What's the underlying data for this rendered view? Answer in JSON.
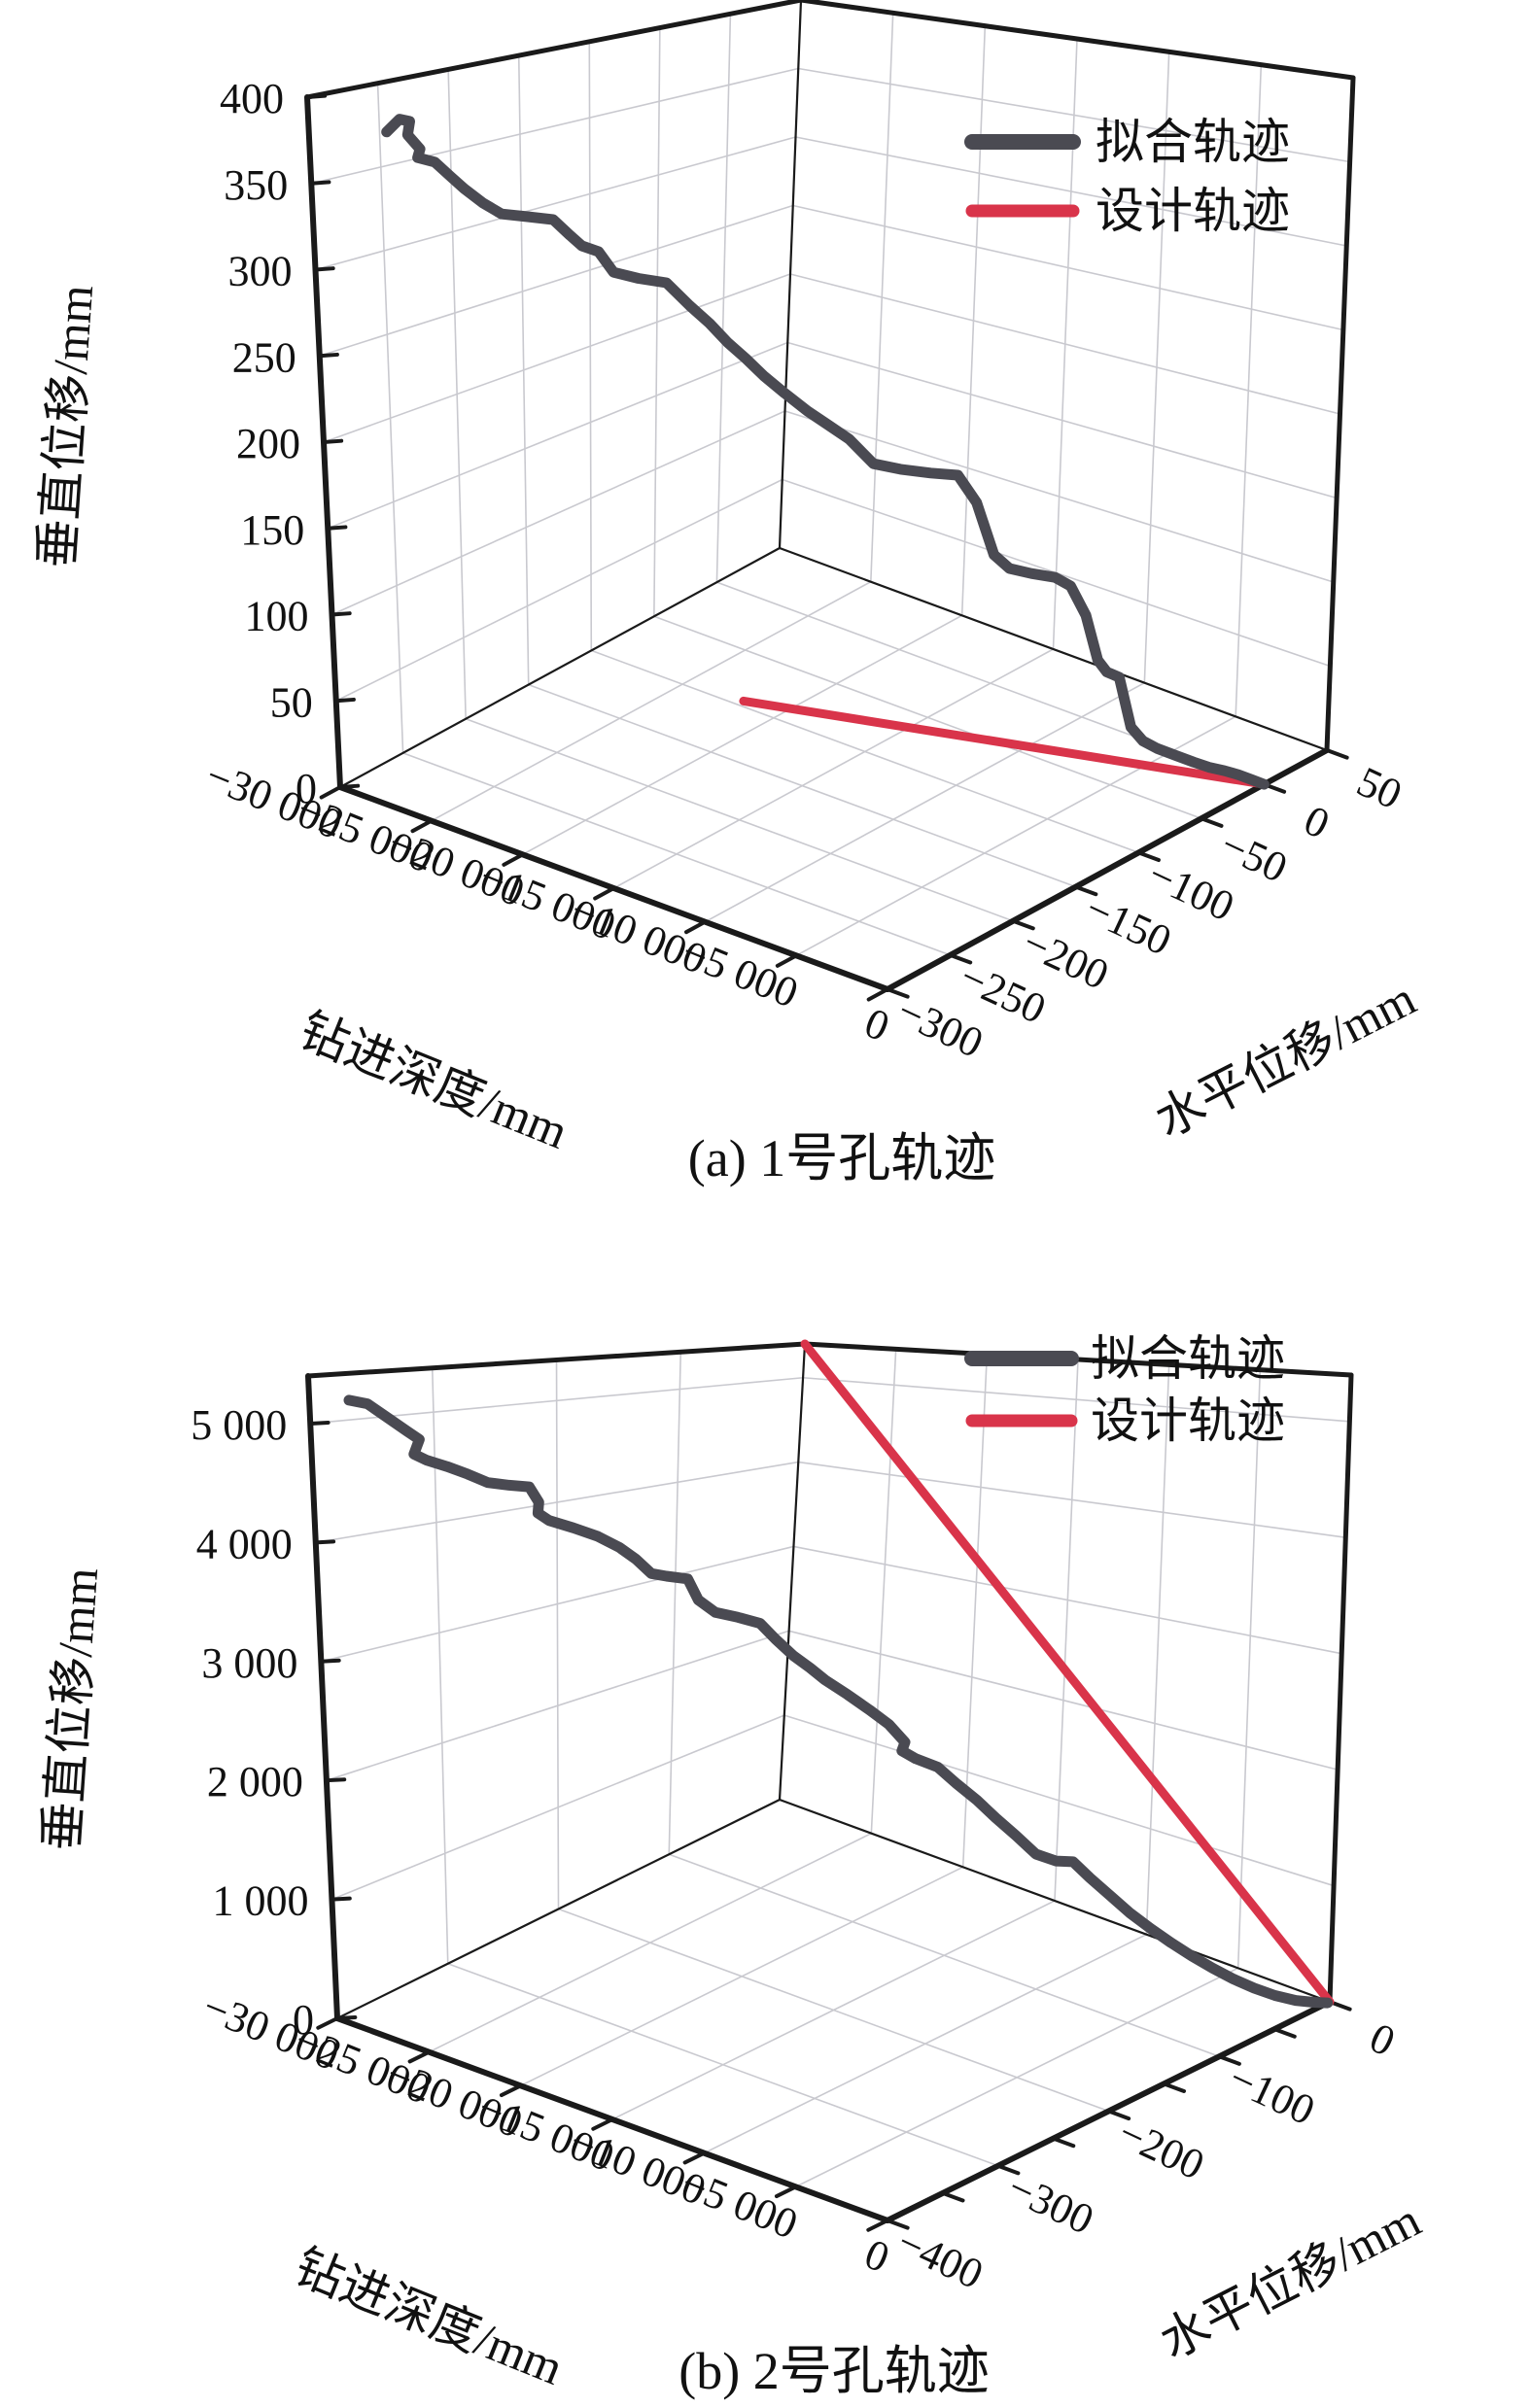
{
  "figure": {
    "captions": [
      "(a) 1号孔轨迹",
      "(b) 2号孔轨迹"
    ]
  },
  "colors": {
    "fitted": "#4a4a52",
    "design": "#d9344a",
    "grid": "#c9c9cf",
    "edge": "#1a1a1a",
    "background": "#ffffff"
  },
  "legend": {
    "fitted_label": "拟合轨迹",
    "design_label": "设计轨迹"
  },
  "chart_data": [
    {
      "type": "line3d",
      "mount": "plot-a",
      "title": "(a) 1号孔轨迹",
      "axes": {
        "x": {
          "label": "钻进深度/mm",
          "min": -30000,
          "max": 0,
          "ticks": [
            {
              "v": -30000,
              "t": "−30 000"
            },
            {
              "v": -25000,
              "t": "−25 000"
            },
            {
              "v": -20000,
              "t": "−20 000"
            },
            {
              "v": -15000,
              "t": "−15 000"
            },
            {
              "v": -10000,
              "t": "−10 000"
            },
            {
              "v": -5000,
              "t": "−5 000"
            },
            {
              "v": 0,
              "t": "0"
            }
          ]
        },
        "y": {
          "label": "水平位移/mm",
          "min": -300,
          "max": 50,
          "ticks": [
            {
              "v": -300,
              "t": "−300"
            },
            {
              "v": -250,
              "t": "−250"
            },
            {
              "v": -200,
              "t": "−200"
            },
            {
              "v": -150,
              "t": "−150"
            },
            {
              "v": -100,
              "t": "−100"
            },
            {
              "v": -50,
              "t": "−50"
            },
            {
              "v": 0,
              "t": "0"
            },
            {
              "v": 50,
              "t": "50"
            }
          ]
        },
        "z": {
          "label": "垂直位移/mm",
          "min": 0,
          "max": 400,
          "cap": 400,
          "ticks": [
            {
              "v": 0,
              "t": "0"
            },
            {
              "v": 50,
              "t": "50"
            },
            {
              "v": 100,
              "t": "100"
            },
            {
              "v": 150,
              "t": "150"
            },
            {
              "v": 200,
              "t": "200"
            },
            {
              "v": 250,
              "t": "250"
            },
            {
              "v": 300,
              "t": "300"
            },
            {
              "v": 350,
              "t": "350"
            },
            {
              "v": 400,
              "t": "400"
            }
          ]
        }
      },
      "grid": true,
      "legend_position": {
        "x": 1000,
        "y1": 146,
        "y2": 217,
        "len": 104,
        "text_x": 1127
      },
      "projection": {
        "floor": {
          "L": [
            350,
            810
          ],
          "V": [
            913,
            1018
          ],
          "R": [
            1365,
            772
          ],
          "T": [
            802,
            564
          ]
        },
        "ceil": {
          "L": [
            316,
            100
          ],
          "V": [
            884,
            180
          ],
          "R": [
            1392,
            80
          ],
          "T": [
            824,
            0
          ]
        }
      },
      "titles_pos": {
        "x": [
          440,
          1128,
          22
        ],
        "y": [
          1330,
          1105,
          -27
        ],
        "z": [
          85,
          440,
          -86
        ]
      },
      "series": [
        {
          "name": "设计轨迹",
          "color_key": "design",
          "width": 9,
          "points": [
            [
              -22000,
              -95,
              0
            ],
            [
              0,
              0,
              0
            ]
          ]
        },
        {
          "name": "拟合轨迹",
          "color_key": "fitted",
          "width": 11,
          "points": [
            [
              -30000,
              -245,
              370
            ],
            [
              -29500,
              -242,
              378
            ],
            [
              -29100,
              -240,
              377
            ],
            [
              -29400,
              -238,
              368
            ],
            [
              -28900,
              -236,
              360
            ],
            [
              -29200,
              -234,
              354
            ],
            [
              -28500,
              -231,
              352
            ],
            [
              -27900,
              -228,
              344
            ],
            [
              -27400,
              -225,
              337
            ],
            [
              -26700,
              -221,
              329
            ],
            [
              -26000,
              -217,
              323
            ],
            [
              -25100,
              -211,
              322
            ],
            [
              -24100,
              -205,
              321
            ],
            [
              -23500,
              -201,
              312
            ],
            [
              -23100,
              -198,
              306
            ],
            [
              -22500,
              -194,
              303
            ],
            [
              -22000,
              -190,
              291
            ],
            [
              -21100,
              -184,
              288
            ],
            [
              -20100,
              -177,
              286
            ],
            [
              -19300,
              -171,
              273
            ],
            [
              -18600,
              -166,
              263
            ],
            [
              -18000,
              -161,
              252
            ],
            [
              -17400,
              -156,
              243
            ],
            [
              -16800,
              -151,
              233
            ],
            [
              -16100,
              -145,
              223
            ],
            [
              -15300,
              -139,
              213
            ],
            [
              -14600,
              -133,
              205
            ],
            [
              -13900,
              -127,
              197
            ],
            [
              -13100,
              -120,
              183
            ],
            [
              -12200,
              -112,
              180
            ],
            [
              -11200,
              -103,
              178
            ],
            [
              -10300,
              -95,
              177
            ],
            [
              -9700,
              -89,
              161
            ],
            [
              -9100,
              -84,
              131
            ],
            [
              -8600,
              -79,
              123
            ],
            [
              -7900,
              -72,
              120
            ],
            [
              -7100,
              -65,
              118
            ],
            [
              -6600,
              -60,
              113
            ],
            [
              -6100,
              -55,
              96
            ],
            [
              -5700,
              -51,
              70
            ],
            [
              -5400,
              -48,
              63
            ],
            [
              -5000,
              -44,
              60
            ],
            [
              -4600,
              -40,
              31
            ],
            [
              -4200,
              -36,
              23
            ],
            [
              -3700,
              -32,
              19
            ],
            [
              -3100,
              -26,
              15
            ],
            [
              -2500,
              -20,
              11
            ],
            [
              -2000,
              -15,
              8
            ],
            [
              -1500,
              -10,
              6
            ],
            [
              -1000,
              -6,
              4
            ],
            [
              -500,
              -3,
              2
            ],
            [
              0,
              0,
              0
            ]
          ]
        }
      ]
    },
    {
      "type": "line3d",
      "mount": "plot-b",
      "title": "(b) 2号孔轨迹",
      "axes": {
        "x": {
          "label": "钻进深度/mm",
          "min": -30000,
          "max": 0,
          "ticks": [
            {
              "v": -30000,
              "t": "−30 000"
            },
            {
              "v": -25000,
              "t": "−25 000"
            },
            {
              "v": -20000,
              "t": "−20 000"
            },
            {
              "v": -15000,
              "t": "−15 000"
            },
            {
              "v": -10000,
              "t": "−10 000"
            },
            {
              "v": -5000,
              "t": "−5 000"
            },
            {
              "v": 0,
              "t": "0"
            }
          ]
        },
        "y": {
          "label": "水平位移/mm",
          "min": -400,
          "max": 0,
          "ticks": [
            {
              "v": -400,
              "t": "−400"
            },
            {
              "v": -350
            },
            {
              "v": -300,
              "t": "−300"
            },
            {
              "v": -250
            },
            {
              "v": -200,
              "t": "−200"
            },
            {
              "v": -150
            },
            {
              "v": -100,
              "t": "−100"
            },
            {
              "v": -50
            },
            {
              "v": 0,
              "t": "0"
            }
          ]
        },
        "z": {
          "label": "垂直位移/mm",
          "min": 0,
          "max": 5000,
          "cap": 5400,
          "ticks": [
            {
              "v": 0,
              "t": "0"
            },
            {
              "v": 1000,
              "t": "1 000"
            },
            {
              "v": 2000,
              "t": "2 000"
            },
            {
              "v": 3000,
              "t": "3 000"
            },
            {
              "v": 4000,
              "t": "4 000"
            },
            {
              "v": 5000,
              "t": "5 000"
            }
          ]
        }
      },
      "grid": true,
      "legend_position": {
        "x": 1000,
        "y1": 1398,
        "y2": 1462,
        "len": 102,
        "text_x": 1122
      },
      "projection": {
        "floor": {
          "L": [
            347,
            2077
          ],
          "V": [
            913,
            2285
          ],
          "R": [
            1368,
            2060
          ],
          "T": [
            802,
            1852
          ]
        },
        "ceil": {
          "L": [
            317,
            1416
          ],
          "V": [
            879,
            1448
          ],
          "R": [
            1390,
            1415
          ],
          "T": [
            828,
            1383
          ]
        }
      },
      "titles_pos": {
        "x": [
          435,
          2400,
          22
        ],
        "y": [
          1335,
          2362,
          -27
        ],
        "z": [
          90,
          1760,
          -86
        ]
      },
      "series": [
        {
          "name": "设计轨迹",
          "color_key": "design",
          "width": 9,
          "points": [
            [
              -30000,
              0,
              5400
            ],
            [
              0,
              0,
              0
            ]
          ]
        },
        {
          "name": "拟合轨迹",
          "color_key": "fitted",
          "width": 11,
          "points": [
            [
              -30000,
              -368,
              5170
            ],
            [
              -29400,
              -362,
              5140
            ],
            [
              -28700,
              -356,
              5020
            ],
            [
              -28100,
              -350,
              4910
            ],
            [
              -27700,
              -346,
              4840
            ],
            [
              -28000,
              -344,
              4770
            ],
            [
              -28300,
              -342,
              4700
            ],
            [
              -27800,
              -339,
              4650
            ],
            [
              -27100,
              -333,
              4600
            ],
            [
              -26400,
              -327,
              4540
            ],
            [
              -25700,
              -321,
              4470
            ],
            [
              -25000,
              -314,
              4450
            ],
            [
              -24300,
              -308,
              4440
            ],
            [
              -24000,
              -305,
              4310
            ],
            [
              -24200,
              -303,
              4210
            ],
            [
              -23800,
              -300,
              4150
            ],
            [
              -23000,
              -292,
              4090
            ],
            [
              -22200,
              -284,
              4020
            ],
            [
              -21500,
              -277,
              3930
            ],
            [
              -21000,
              -271,
              3830
            ],
            [
              -20500,
              -266,
              3710
            ],
            [
              -20000,
              -261,
              3690
            ],
            [
              -19300,
              -254,
              3670
            ],
            [
              -19000,
              -250,
              3490
            ],
            [
              -18400,
              -245,
              3390
            ],
            [
              -17700,
              -237,
              3350
            ],
            [
              -17000,
              -229,
              3300
            ],
            [
              -16500,
              -224,
              3170
            ],
            [
              -15900,
              -218,
              3030
            ],
            [
              -15400,
              -212,
              2930
            ],
            [
              -14900,
              -207,
              2830
            ],
            [
              -14200,
              -199,
              2710
            ],
            [
              -13500,
              -191,
              2580
            ],
            [
              -12900,
              -184,
              2460
            ],
            [
              -12400,
              -178,
              2310
            ],
            [
              -12700,
              -176,
              2220
            ],
            [
              -12200,
              -172,
              2160
            ],
            [
              -11500,
              -164,
              2090
            ],
            [
              -10900,
              -157,
              1950
            ],
            [
              -10300,
              -149,
              1810
            ],
            [
              -9700,
              -142,
              1660
            ],
            [
              -9100,
              -134,
              1510
            ],
            [
              -8500,
              -126,
              1350
            ],
            [
              -7900,
              -118,
              1290
            ],
            [
              -7400,
              -111,
              1280
            ],
            [
              -6900,
              -104,
              1140
            ],
            [
              -6300,
              -96,
              990
            ],
            [
              -5700,
              -88,
              840
            ],
            [
              -5100,
              -79,
              700
            ],
            [
              -4500,
              -70,
              570
            ],
            [
              -3900,
              -61,
              450
            ],
            [
              -3300,
              -52,
              340
            ],
            [
              -2700,
              -43,
              240
            ],
            [
              -2100,
              -34,
              155
            ],
            [
              -1500,
              -25,
              85
            ],
            [
              -900,
              -16,
              35
            ],
            [
              -400,
              -8,
              10
            ],
            [
              0,
              -2,
              0
            ]
          ]
        }
      ]
    }
  ]
}
